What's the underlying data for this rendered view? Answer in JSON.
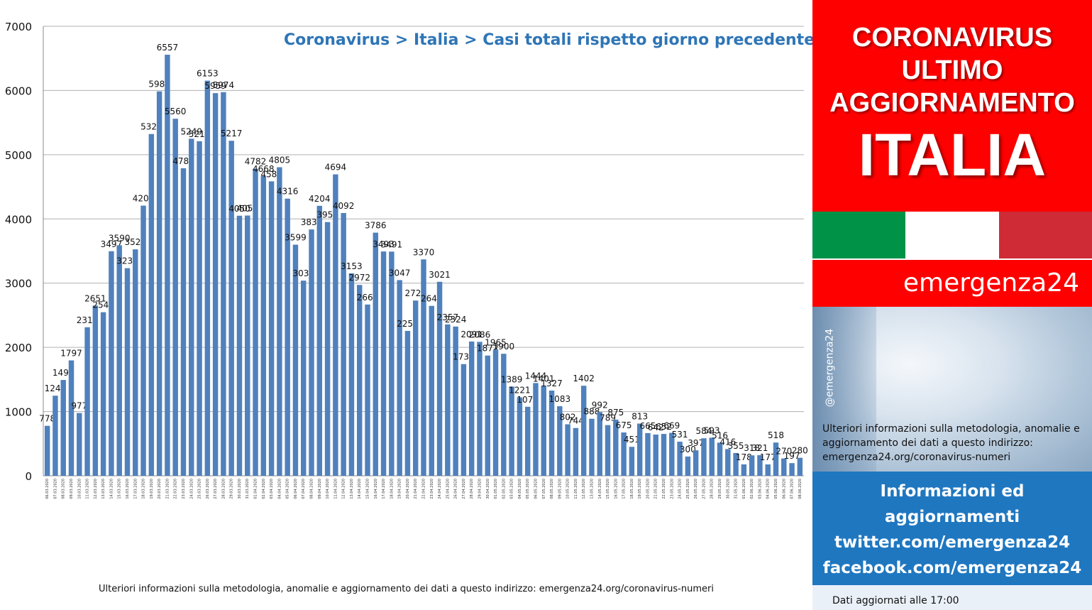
{
  "chart": {
    "title": "Coronavirus > Italia > Casi totali rispetto giorno precedente",
    "footnote": "Ulteriori informazioni sulla metodologia, anomalie e aggiornamento dei dati a questo indirizzo: emergenza24.org/coronavirus-numeri"
  },
  "chart_data": {
    "type": "bar",
    "title": "Coronavirus > Italia > Casi totali rispetto giorno precedente",
    "xlabel": "",
    "ylabel": "",
    "ylim": [
      0,
      7000
    ],
    "yticks": [
      0,
      1000,
      2000,
      3000,
      4000,
      5000,
      6000,
      7000
    ],
    "grid": true,
    "bar_color": "#4f81bd",
    "categories": [
      "06.03.2020",
      "07.03.2020",
      "08.03.2020",
      "09.03.2020",
      "10.03.2020",
      "11.03.2020",
      "12.03.2020",
      "13.03.2020",
      "14.03.2020",
      "15.03.2020",
      "16.03.2020",
      "17.03.2020",
      "18.03.2020",
      "19.03.2020",
      "20.03.2020",
      "21.03.2020",
      "22.03.2020",
      "23.03.2020",
      "24.03.2020",
      "25.03.2020",
      "26.03.2020",
      "27.03.2020",
      "28.03.2020",
      "29.03.2020",
      "30.03.2020",
      "31.03.2020",
      "01.04.2020",
      "02.04.2020",
      "03.04.2020",
      "04.04.2020",
      "05.04.2020",
      "06.04.2020",
      "07.04.2020",
      "08.04.2020",
      "09.04.2020",
      "10.04.2020",
      "11.04.2020",
      "12.04.2020",
      "13.04.2020",
      "14.04.2020",
      "15.04.2020",
      "16.04.2020",
      "17.04.2020",
      "18.04.2020",
      "19.04.2020",
      "20.04.2020",
      "21.04.2020",
      "22.04.2020",
      "23.04.2020",
      "24.04.2020",
      "25.04.2020",
      "26.04.2020",
      "27.04.2020",
      "28.04.2020",
      "29.04.2020",
      "30.04.2020",
      "01.05.2020",
      "02.05.2020",
      "03.05.2020",
      "04.05.2020",
      "05.05.2020",
      "06.05.2020",
      "07.05.2020",
      "08.05.2020",
      "09.05.2020",
      "10.05.2020",
      "11.05.2020",
      "12.05.2020",
      "13.05.2020",
      "14.05.2020",
      "15.05.2020",
      "16.05.2020",
      "17.05.2020",
      "18.05.2020",
      "19.05.2020",
      "20.05.2020",
      "21.05.2020",
      "22.05.2020",
      "23.05.2020",
      "24.05.2020",
      "25.05.2020",
      "26.05.2020",
      "27.05.2020",
      "28.05.2020",
      "29.05.2020",
      "30.05.2020",
      "31.05.2020",
      "01.06.2020",
      "02.06.2020",
      "03.06.2020",
      "04.06.2020",
      "05.06.2020",
      "06.06.2020",
      "07.06.2020",
      "08.06.2020"
    ],
    "values": [
      778,
      1247,
      1492,
      1797,
      977,
      2313,
      2651,
      2547,
      3497,
      3590,
      3233,
      3526,
      4207,
      5322,
      5986,
      6557,
      5560,
      4789,
      5249,
      5210,
      6153,
      5959,
      5974,
      5217,
      4050,
      4053,
      4782,
      4668,
      4585,
      4805,
      4316,
      3599,
      3039,
      3836,
      4204,
      3951,
      4694,
      4092,
      3153,
      2972,
      2667,
      3786,
      3493,
      3491,
      3047,
      2256,
      2729,
      3370,
      2646,
      3021,
      2357,
      2324,
      1739,
      2091,
      2086,
      1872,
      1965,
      1900,
      1389,
      1221,
      1075,
      1444,
      1401,
      1327,
      1083,
      802,
      744,
      1402,
      888,
      992,
      789,
      875,
      675,
      451,
      813,
      665,
      642,
      652,
      669,
      531,
      300,
      397,
      584,
      593,
      516,
      416,
      355,
      178,
      318,
      321,
      177,
      518,
      270,
      197,
      280
    ]
  },
  "banner": {
    "line1": "CORONAVIRUS",
    "line2": "ULTIMO",
    "line3": "AGGIORNAMENTO",
    "country": "ITALIA"
  },
  "brand": {
    "name": "emergenza24",
    "handle": "@emergenza24"
  },
  "info": {
    "text": "Ulteriori informazioni sulla metodologia, anomalie e aggiornamento dei dati a questo indirizzo: emergenza24.org/coronavirus-numeri"
  },
  "social": {
    "line1": "Informazioni ed",
    "line2": "aggiornamenti",
    "twitter": "twitter.com/emergenza24",
    "facebook": "facebook.com/emergenza24"
  },
  "update": {
    "text": "Dati aggiornati alle 17:00"
  },
  "colors": {
    "banner_red": "#ff0000",
    "bar_blue": "#4f81bd",
    "social_blue": "#1f77c0",
    "title_blue": "#2e75b6"
  }
}
